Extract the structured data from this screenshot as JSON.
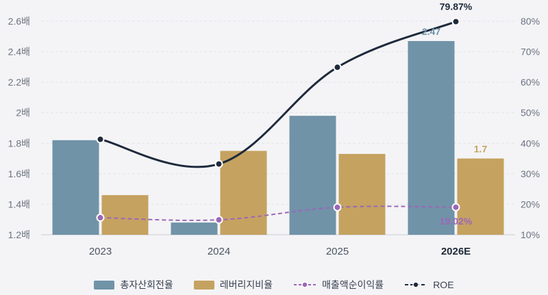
{
  "chart_data": {
    "type": "bar+line",
    "categories": [
      "2023",
      "2024",
      "2025",
      "2026E"
    ],
    "bold_category": "2026E",
    "left_axis": {
      "ticks": [
        "1.2배",
        "1.4배",
        "1.6배",
        "1.8배",
        "2배",
        "2.2배",
        "2.4배",
        "2.6배"
      ],
      "range": [
        1.2,
        2.6
      ]
    },
    "right_axis": {
      "ticks": [
        "10%",
        "20%",
        "30%",
        "40%",
        "50%",
        "60%",
        "70%",
        "80%"
      ],
      "range": [
        10,
        80
      ]
    },
    "series": [
      {
        "name": "총자산회전율",
        "kind": "bar",
        "axis": "left",
        "color": "#7093a8",
        "values": [
          1.82,
          1.28,
          1.98,
          2.47
        ],
        "last_label": "2.47"
      },
      {
        "name": "레버리지비율",
        "kind": "bar",
        "axis": "left",
        "color": "#c5a260",
        "values": [
          1.46,
          1.75,
          1.73,
          1.7
        ],
        "last_label": "1.7"
      },
      {
        "name": "매출액순이익률",
        "kind": "dashed-line",
        "axis": "right",
        "color": "#9b67b8",
        "values": [
          15.6,
          14.9,
          19.0,
          19.02
        ],
        "last_label": "19.02%"
      },
      {
        "name": "ROE",
        "kind": "line",
        "axis": "right",
        "color": "#1e2a3c",
        "values": [
          41.3,
          33.2,
          64.9,
          79.87
        ],
        "last_label": "79.87%"
      }
    ],
    "grid": true,
    "legend_position": "bottom"
  }
}
